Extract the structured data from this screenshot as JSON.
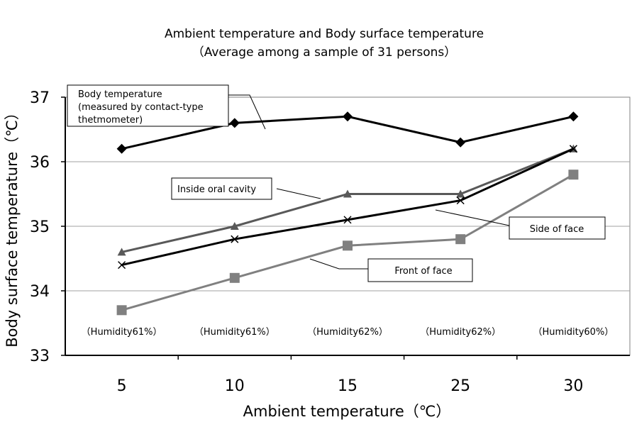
{
  "chart_data": {
    "type": "line",
    "title": "Ambient temperature and Body surface temperature",
    "subtitle": "（Average among a sample of 31 persons）",
    "xlabel": "Ambient temperature（℃）",
    "ylabel": "Body surface temperature（℃）",
    "categories": [
      "5",
      "10",
      "15",
      "25",
      "30"
    ],
    "humidity_labels": [
      "（Humidity61%）",
      "（Humidity61%）",
      "（Humidity62%）",
      "（Humidity62%）",
      "（Humidity60%）"
    ],
    "yticks": [
      "33",
      "34",
      "35",
      "36",
      "37"
    ],
    "ylim": [
      33,
      37
    ],
    "grid": true,
    "series": [
      {
        "name": "Body temperature (measured by contact-type thetmometer)",
        "label_lines": [
          "Body temperature",
          "(measured by contact-type",
          "thetmometer)"
        ],
        "marker": "diamond",
        "color": "#000000",
        "values": [
          36.2,
          36.6,
          36.7,
          36.3,
          36.7
        ]
      },
      {
        "name": "Inside oral cavity",
        "label_lines": [
          "Inside oral cavity"
        ],
        "marker": "triangle",
        "color": "#595959",
        "values": [
          34.6,
          35.0,
          35.5,
          35.5,
          36.2
        ]
      },
      {
        "name": "Side of face",
        "label_lines": [
          "Side of face"
        ],
        "marker": "x",
        "color": "#000000",
        "values": [
          34.4,
          34.8,
          35.1,
          35.4,
          36.2
        ]
      },
      {
        "name": "Front of face",
        "label_lines": [
          "Front of face"
        ],
        "marker": "square",
        "color": "#808080",
        "values": [
          33.7,
          34.2,
          34.7,
          34.8,
          35.8
        ]
      }
    ]
  }
}
